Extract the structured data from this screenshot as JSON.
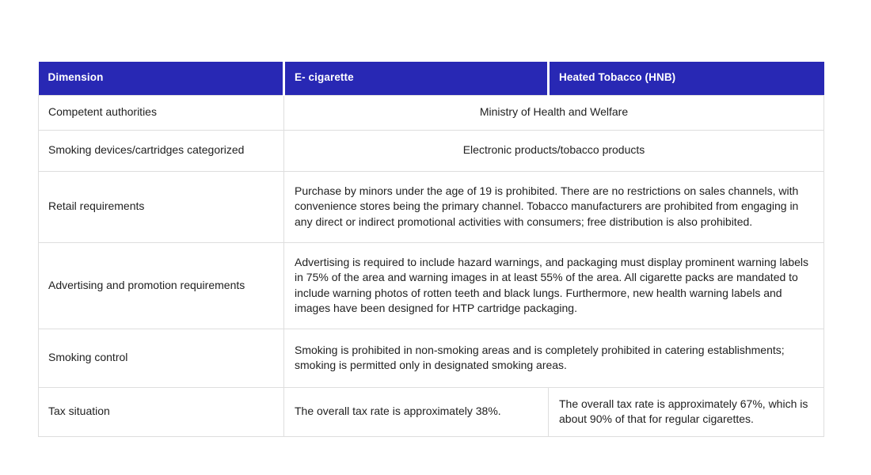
{
  "colors": {
    "header_bg": "#2828b4",
    "header_text": "#ffffff",
    "border": "#dedede",
    "body_text": "#212121",
    "page_bg": "#ffffff"
  },
  "table": {
    "header": {
      "dimension": "Dimension",
      "ecigarette": "E- cigarette",
      "hnb": "Heated Tobacco (HNB)"
    },
    "rows": [
      {
        "dimension": "Competent authorities",
        "value": "Ministry of Health and Welfare"
      },
      {
        "dimension": "Smoking devices/cartridges categorized",
        "value": "Electronic products/tobacco products"
      },
      {
        "dimension": "Retail requirements",
        "value": "Purchase by minors under the age of 19 is prohibited. There are no restrictions on sales channels, with convenience stores being the primary channel. Tobacco manufacturers are prohibited from engaging in any direct or indirect promotional activities with consumers; free distribution is also prohibited."
      },
      {
        "dimension": "Advertising and promotion requirements",
        "value": "Advertising is required to include hazard warnings, and packaging must display prominent warning labels in 75% of the area and warning images in at least 55% of the area. All cigarette packs are mandated to include warning photos of rotten teeth and black lungs. Furthermore, new health warning labels and images have been designed for HTP cartridge packaging."
      },
      {
        "dimension": "Smoking control",
        "value": "Smoking is prohibited in non-smoking areas and is completely prohibited in catering establishments; smoking is permitted only in designated smoking areas."
      },
      {
        "dimension": "Tax situation",
        "ecigarette": "The overall tax rate is approximately 38%.",
        "hnb": "The overall tax rate is approximately 67%, which is about 90% of that for regular cigarettes."
      }
    ]
  }
}
